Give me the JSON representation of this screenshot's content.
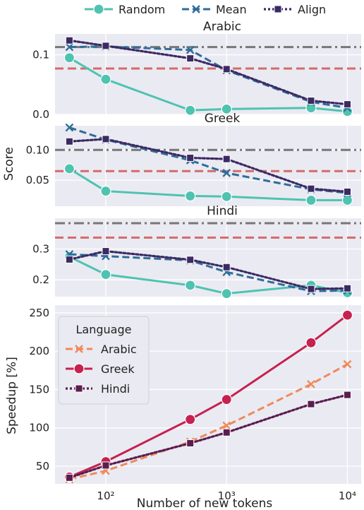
{
  "chart_data": [
    {
      "type": "line",
      "title": "Arabic",
      "ylabel": "",
      "xscale": "log",
      "x": [
        50,
        100,
        500,
        1000,
        5000,
        10000
      ],
      "ylim": [
        0,
        0.135
      ],
      "yticks": [
        0.0,
        0.1
      ],
      "ytick_labels": [
        "0.0",
        "0.1"
      ],
      "hlines": [
        {
          "y": 0.113,
          "color": "#777777",
          "style": "dashdot"
        },
        {
          "y": 0.077,
          "color": "#d46a6a",
          "style": "dashed"
        }
      ],
      "series": [
        {
          "name": "Random",
          "values": [
            0.095,
            0.059,
            0.007,
            0.009,
            0.011,
            0.005
          ]
        },
        {
          "name": "Mean",
          "values": [
            0.113,
            0.114,
            0.108,
            0.074,
            0.021,
            0.011
          ]
        },
        {
          "name": "Align",
          "values": [
            0.124,
            0.115,
            0.094,
            0.076,
            0.023,
            0.017
          ]
        }
      ]
    },
    {
      "type": "line",
      "title": "Greek",
      "ylabel": "Score",
      "xscale": "log",
      "x": [
        50,
        100,
        500,
        1000,
        5000,
        10000
      ],
      "ylim": [
        0.007,
        0.14
      ],
      "yticks": [
        0.05,
        0.1
      ],
      "ytick_labels": [
        "0.05",
        "0.10"
      ],
      "hlines": [
        {
          "y": 0.1,
          "color": "#777777",
          "style": "dashdot"
        },
        {
          "y": 0.065,
          "color": "#d46a6a",
          "style": "dashed"
        }
      ],
      "series": [
        {
          "name": "Random",
          "values": [
            0.069,
            0.032,
            0.024,
            0.023,
            0.017,
            0.017
          ]
        },
        {
          "name": "Mean",
          "values": [
            0.137,
            0.117,
            0.083,
            0.062,
            0.035,
            0.029
          ]
        },
        {
          "name": "Align",
          "values": [
            0.114,
            0.118,
            0.087,
            0.085,
            0.036,
            0.031
          ]
        }
      ]
    },
    {
      "type": "line",
      "title": "Hindi",
      "ylabel": "",
      "xscale": "log",
      "x": [
        50,
        100,
        500,
        1000,
        5000,
        10000
      ],
      "ylim": [
        0.145,
        0.4
      ],
      "yticks": [
        0.2,
        0.3
      ],
      "ytick_labels": [
        "0.2",
        "0.3"
      ],
      "hlines": [
        {
          "y": 0.384,
          "color": "#777777",
          "style": "dashdot"
        },
        {
          "y": 0.337,
          "color": "#d46a6a",
          "style": "dashed"
        }
      ],
      "series": [
        {
          "name": "Random",
          "values": [
            0.275,
            0.217,
            0.182,
            0.155,
            0.182,
            0.158
          ]
        },
        {
          "name": "Mean",
          "values": [
            0.283,
            0.277,
            0.263,
            0.225,
            0.163,
            0.165
          ]
        },
        {
          "name": "Align",
          "values": [
            0.266,
            0.293,
            0.265,
            0.241,
            0.17,
            0.172
          ]
        }
      ]
    },
    {
      "type": "line",
      "title": "",
      "ylabel": "Speedup [%]",
      "xlabel": "Number of new tokens",
      "xscale": "log",
      "x": [
        50,
        100,
        500,
        1000,
        5000,
        10000
      ],
      "ylim": [
        27,
        260
      ],
      "yticks": [
        50,
        100,
        150,
        200,
        250
      ],
      "ytick_labels": [
        "50",
        "100",
        "150",
        "200",
        "250"
      ],
      "xtick_labels": [
        "10²",
        "10³",
        "10⁴"
      ],
      "legend_title": "Language",
      "legend_position": "upper left",
      "series": [
        {
          "name": "Arabic",
          "values": [
            33,
            44,
            82,
            103,
            157,
            183
          ]
        },
        {
          "name": "Greek",
          "values": [
            36,
            56,
            111,
            137,
            211,
            247
          ]
        },
        {
          "name": "Hindi",
          "values": [
            35,
            51,
            80,
            94,
            131,
            143
          ]
        }
      ]
    }
  ],
  "legend": {
    "entries": [
      "Random",
      "Mean",
      "Align"
    ]
  },
  "colors": {
    "Random": "#4ec3b0",
    "Mean": "#2e6d9a",
    "Align": "#3c2a63",
    "Arabic": "#ee8a5b",
    "Greek": "#c6214f",
    "Hindi": "#5a1d4e",
    "panel_bg": "#eaeaf2",
    "grid": "#ffffff",
    "hline_gray": "#777777",
    "hline_red": "#d46a6a"
  }
}
